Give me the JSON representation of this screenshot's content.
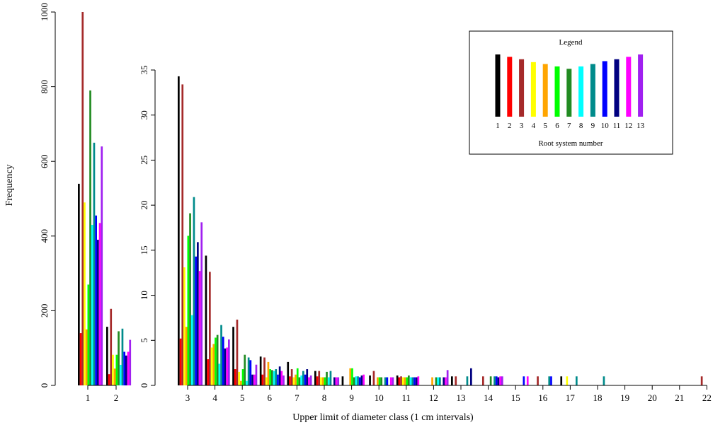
{
  "chart_data": {
    "type": "bar",
    "ylabel": "Frequency",
    "xlabel": "Upper limit of diameter class (1 cm intervals)",
    "series_colors": [
      "#000000",
      "#ff0000",
      "#a52a2a",
      "#ffff00",
      "#ffa500",
      "#00ff00",
      "#228b22",
      "#00ffff",
      "#008b8b",
      "#0000ff",
      "#000080",
      "#ff00ff",
      "#a020f0"
    ],
    "panel1": {
      "categories": [
        "1",
        "2"
      ],
      "ylim": [
        0,
        1000
      ],
      "yticks": [
        0,
        200,
        400,
        600,
        800,
        1000
      ],
      "values": [
        [
          540,
          140,
          1000,
          490,
          150,
          270,
          790,
          430,
          650,
          455,
          390,
          435,
          640
        ],
        [
          157,
          30,
          205,
          82,
          45,
          82,
          145,
          55,
          152,
          90,
          80,
          90,
          122
        ]
      ]
    },
    "panel2": {
      "categories": [
        "3",
        "4",
        "5",
        "6",
        "7",
        "8",
        "9",
        "10",
        "11",
        "12",
        "13",
        "14",
        "15",
        "16",
        "17",
        "18",
        "19",
        "20",
        "21",
        "22"
      ],
      "ylim": [
        0,
        35
      ],
      "yticks": [
        0,
        5,
        10,
        15,
        20,
        25,
        30,
        35
      ],
      "values": [
        [
          34.3,
          5.2,
          33.4,
          13.1,
          6.5,
          16.6,
          19.1,
          7.8,
          20.9,
          14.3,
          15.9,
          12.7,
          18.1
        ],
        [
          14.4,
          2.9,
          12.6,
          4.2,
          4.6,
          5.3,
          5.6,
          2.4,
          6.7,
          5.4,
          4.1,
          4.2,
          5.1
        ],
        [
          6.5,
          1.8,
          7.3,
          1.5,
          0.5,
          1.8,
          3.4,
          0.5,
          3.1,
          2.8,
          1.2,
          1.2,
          2.3
        ],
        [
          3.2,
          1.2,
          3.1,
          0.9,
          2.6,
          1.8,
          1.7,
          1.6,
          1.8,
          1.2,
          2.1,
          1.6,
          1.1
        ],
        [
          2.6,
          1.0,
          1.8,
          0.9,
          1.2,
          1.9,
          0.9,
          1.1,
          1.6,
          1.2,
          1.8,
          0.9,
          1.1
        ],
        [
          1.6,
          1.0,
          1.6,
          0.9,
          0.9,
          0.9,
          1.5,
          0.9,
          1.6,
          0,
          0.9,
          0.9,
          0.9
        ],
        [
          1.0,
          0,
          0,
          0,
          1.9,
          1.9,
          0.9,
          1.0,
          1.0,
          0.9,
          1.1,
          1.2,
          0
        ],
        [
          1.1,
          0,
          1.6,
          0,
          0.9,
          0.9,
          0.9,
          0,
          0.9,
          0.9,
          0,
          0.9,
          0.9
        ],
        [
          1.1,
          0.9,
          1.0,
          0.9,
          0.9,
          0.9,
          1.1,
          0.9,
          0.9,
          0.9,
          0.9,
          1.0,
          0
        ],
        [
          0,
          0,
          0,
          0,
          0.9,
          0,
          0.9,
          0.9,
          0.9,
          0,
          0.9,
          0.9,
          1.7
        ],
        [
          1.0,
          0,
          1.0,
          0,
          0,
          0,
          0,
          0,
          1.0,
          0,
          1.9,
          0,
          0
        ],
        [
          0,
          0,
          1.0,
          0,
          0,
          0,
          1.0,
          0,
          1.0,
          1.0,
          0.9,
          1.0,
          1.0
        ],
        [
          0,
          0,
          0,
          0,
          0,
          0,
          0,
          0,
          0,
          1.0,
          0,
          1.0,
          0
        ],
        [
          0,
          0,
          1.0,
          0,
          0,
          0,
          0,
          0,
          1.0,
          1.0,
          0,
          0,
          0
        ],
        [
          1.0,
          0,
          0,
          1.0,
          0,
          0,
          0,
          0,
          1.0,
          0,
          0,
          0,
          0
        ],
        [
          0,
          0,
          0,
          0,
          0,
          0,
          0,
          0,
          1.0,
          0,
          0,
          0,
          0
        ],
        [
          0,
          0,
          0,
          0,
          0,
          0,
          0,
          0,
          0,
          0,
          0,
          0,
          0
        ],
        [
          0,
          0,
          0,
          0,
          0,
          0,
          0,
          0,
          0,
          0,
          0,
          0,
          0
        ],
        [
          0,
          0,
          0,
          0,
          0,
          0,
          0,
          0,
          0,
          0,
          0,
          0,
          0
        ],
        [
          0,
          0,
          1.0,
          0,
          0,
          0,
          0,
          0,
          0,
          0,
          0,
          0,
          0
        ]
      ]
    },
    "legend": {
      "title": "Legend",
      "labels": [
        "1",
        "2",
        "3",
        "4",
        "5",
        "6",
        "7",
        "8",
        "9",
        "10",
        "11",
        "12",
        "13"
      ],
      "values": [
        13,
        12.5,
        12,
        11.4,
        11,
        10.5,
        10,
        10.5,
        11,
        11.6,
        12,
        12.5,
        13
      ],
      "caption": "Root system number",
      "placement": "top-right"
    }
  }
}
